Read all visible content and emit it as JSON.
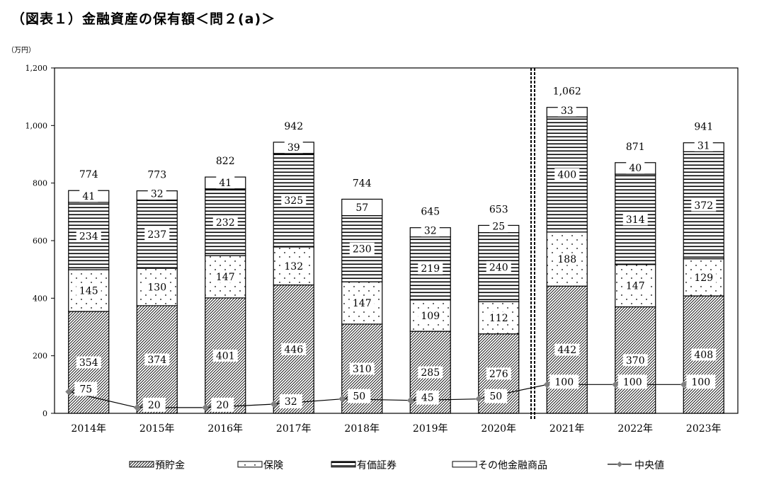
{
  "title": "（図表１）金融資産の保有額＜問２(a)＞",
  "chart_data": {
    "type": "bar",
    "stacked": true,
    "unit_label": "（万円）",
    "categories": [
      "2014年",
      "2015年",
      "2016年",
      "2017年",
      "2018年",
      "2019年",
      "2020年",
      "2021年",
      "2022年",
      "2023年"
    ],
    "ylim": [
      0,
      1200
    ],
    "yticks": [
      "0",
      "200",
      "400",
      "600",
      "800",
      "1,000",
      "1,200"
    ],
    "ytick_values": [
      0,
      200,
      400,
      600,
      800,
      1000,
      1200
    ],
    "totals": [
      "774",
      "773",
      "822",
      "942",
      "744",
      "645",
      "653",
      "1,062",
      "871",
      "941"
    ],
    "series": [
      {
        "name": "預貯金",
        "pattern": "diagonal",
        "values": [
          354,
          374,
          401,
          446,
          310,
          285,
          276,
          442,
          370,
          408
        ]
      },
      {
        "name": "保険",
        "pattern": "dots",
        "values": [
          145,
          130,
          147,
          132,
          147,
          109,
          112,
          188,
          147,
          129
        ]
      },
      {
        "name": "有価証券",
        "pattern": "horizontal",
        "values": [
          234,
          237,
          232,
          325,
          230,
          219,
          240,
          400,
          314,
          372
        ]
      },
      {
        "name": "その他金融商品",
        "pattern": "blank",
        "values": [
          41,
          32,
          41,
          39,
          57,
          32,
          25,
          33,
          40,
          31
        ]
      }
    ],
    "line_series": {
      "name": "中央値",
      "color": "#7f7f7f",
      "values": [
        75,
        20,
        20,
        32,
        50,
        45,
        50,
        100,
        100,
        100
      ]
    },
    "break_after_index": 6,
    "legend_position": "bottom",
    "grid": false
  }
}
